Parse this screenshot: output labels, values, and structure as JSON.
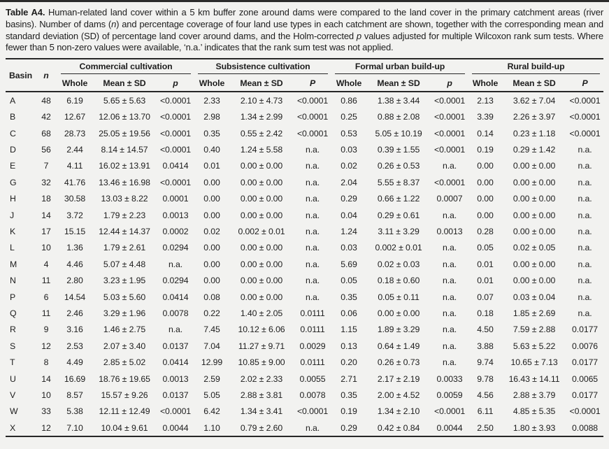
{
  "caption": {
    "label": "Table A4.",
    "part1": " Human-related land cover within a 5 km buffer zone around dams were compared to the land cover in the primary catchment areas (river basins). Number of dams (",
    "n_italic": "n",
    "part2": ") and percentage coverage of four land use types in each catchment are shown, together with the corresponding mean and standard deviation (SD) of percentage land cover around dams, and the Holm-corrected ",
    "p_italic": "p",
    "part3": " values adjusted for multiple Wilcoxon rank sum tests. Where fewer than 5 non-zero values were available, ‘n.a.’ indicates that the rank sum test was not applied."
  },
  "table": {
    "basin_label": "Basin",
    "n_label": "n",
    "subheaders": {
      "whole": "Whole",
      "mean_sd": "Mean ± SD"
    },
    "groups": [
      {
        "label": "Commercial cultivation",
        "p_label": "p"
      },
      {
        "label": "Subsistence cultivation",
        "p_label": "P"
      },
      {
        "label": "Formal urban build-up",
        "p_label": "p"
      },
      {
        "label": "Rural build-up",
        "p_label": "P"
      }
    ],
    "rows": [
      {
        "basin": "A",
        "n": "48",
        "cells": [
          "6.19",
          "5.65 ± 5.63",
          "<0.0001",
          "2.33",
          "2.10 ± 4.73",
          "<0.0001",
          "0.86",
          "1.38 ± 3.44",
          "<0.0001",
          "2.13",
          "3.62 ± 7.04",
          "<0.0001"
        ]
      },
      {
        "basin": "B",
        "n": "42",
        "cells": [
          "12.67",
          "12.06 ± 13.70",
          "<0.0001",
          "2.98",
          "1.34 ± 2.99",
          "<0.0001",
          "0.25",
          "0.88 ± 2.08",
          "<0.0001",
          "3.39",
          "2.26 ± 3.97",
          "<0.0001"
        ]
      },
      {
        "basin": "C",
        "n": "68",
        "cells": [
          "28.73",
          "25.05 ± 19.56",
          "<0.0001",
          "0.35",
          "0.55 ± 2.42",
          "<0.0001",
          "0.53",
          "5.05 ± 10.19",
          "<0.0001",
          "0.14",
          "0.23 ± 1.18",
          "<0.0001"
        ]
      },
      {
        "basin": "D",
        "n": "56",
        "cells": [
          "2.44",
          "8.14 ± 14.57",
          "<0.0001",
          "0.40",
          "1.24 ± 5.58",
          "n.a.",
          "0.03",
          "0.39 ± 1.55",
          "<0.0001",
          "0.19",
          "0.29 ± 1.42",
          "n.a."
        ]
      },
      {
        "basin": "E",
        "n": "7",
        "cells": [
          "4.11",
          "16.02 ± 13.91",
          "0.0414",
          "0.01",
          "0.00 ± 0.00",
          "n.a.",
          "0.02",
          "0.26 ± 0.53",
          "n.a.",
          "0.00",
          "0.00 ± 0.00",
          "n.a."
        ]
      },
      {
        "basin": "G",
        "n": "32",
        "cells": [
          "41.76",
          "13.46 ± 16.98",
          "<0.0001",
          "0.00",
          "0.00 ± 0.00",
          "n.a.",
          "2.04",
          "5.55 ± 8.37",
          "<0.0001",
          "0.00",
          "0.00 ± 0.00",
          "n.a."
        ]
      },
      {
        "basin": "H",
        "n": "18",
        "cells": [
          "30.58",
          "13.03 ± 8.22",
          "0.0001",
          "0.00",
          "0.00 ± 0.00",
          "n.a.",
          "0.29",
          "0.66 ± 1.22",
          "0.0007",
          "0.00",
          "0.00 ± 0.00",
          "n.a."
        ]
      },
      {
        "basin": "J",
        "n": "14",
        "cells": [
          "3.72",
          "1.79 ± 2.23",
          "0.0013",
          "0.00",
          "0.00 ± 0.00",
          "n.a.",
          "0.04",
          "0.29 ± 0.61",
          "n.a.",
          "0.00",
          "0.00 ± 0.00",
          "n.a."
        ]
      },
      {
        "basin": "K",
        "n": "17",
        "cells": [
          "15.15",
          "12.44 ± 14.37",
          "0.0002",
          "0.02",
          "0.002 ± 0.01",
          "n.a.",
          "1.24",
          "3.11 ± 3.29",
          "0.0013",
          "0.28",
          "0.00 ± 0.00",
          "n.a."
        ]
      },
      {
        "basin": "L",
        "n": "10",
        "cells": [
          "1.36",
          "1.79 ± 2.61",
          "0.0294",
          "0.00",
          "0.00 ± 0.00",
          "n.a.",
          "0.03",
          "0.002 ± 0.01",
          "n.a.",
          "0.05",
          "0.02 ± 0.05",
          "n.a."
        ]
      },
      {
        "basin": "M",
        "n": "4",
        "cells": [
          "4.46",
          "5.07 ± 4.48",
          "n.a.",
          "0.00",
          "0.00 ± 0.00",
          "n.a.",
          "5.69",
          "0.02 ± 0.03",
          "n.a.",
          "0.01",
          "0.00 ± 0.00",
          "n.a."
        ]
      },
      {
        "basin": "N",
        "n": "11",
        "cells": [
          "2.80",
          "3.23 ± 1.95",
          "0.0294",
          "0.00",
          "0.00 ± 0.00",
          "n.a.",
          "0.05",
          "0.18 ± 0.60",
          "n.a.",
          "0.01",
          "0.00 ± 0.00",
          "n.a."
        ]
      },
      {
        "basin": "P",
        "n": "6",
        "cells": [
          "14.54",
          "5.03 ± 5.60",
          "0.0414",
          "0.08",
          "0.00 ± 0.00",
          "n.a.",
          "0.35",
          "0.05 ± 0.11",
          "n.a.",
          "0.07",
          "0.03 ± 0.04",
          "n.a."
        ]
      },
      {
        "basin": "Q",
        "n": "11",
        "cells": [
          "2.46",
          "3.29 ± 1.96",
          "0.0078",
          "0.22",
          "1.40 ± 2.05",
          "0.0111",
          "0.06",
          "0.00 ± 0.00",
          "n.a.",
          "0.18",
          "1.85 ± 2.69",
          "n.a."
        ]
      },
      {
        "basin": "R",
        "n": "9",
        "cells": [
          "3.16",
          "1.46 ± 2.75",
          "n.a.",
          "7.45",
          "10.12 ± 6.06",
          "0.0111",
          "1.15",
          "1.89 ± 3.29",
          "n.a.",
          "4.50",
          "7.59 ± 2.88",
          "0.0177"
        ]
      },
      {
        "basin": "S",
        "n": "12",
        "cells": [
          "2.53",
          "2.07 ± 3.40",
          "0.0137",
          "7.04",
          "11.27 ± 9.71",
          "0.0029",
          "0.13",
          "0.64 ± 1.49",
          "n.a.",
          "3.88",
          "5.63 ± 5.22",
          "0.0076"
        ]
      },
      {
        "basin": "T",
        "n": "8",
        "cells": [
          "4.49",
          "2.85 ± 5.02",
          "0.0414",
          "12.99",
          "10.85 ± 9.00",
          "0.0111",
          "0.20",
          "0.26 ± 0.73",
          "n.a.",
          "9.74",
          "10.65 ± 7.13",
          "0.0177"
        ]
      },
      {
        "basin": "U",
        "n": "14",
        "cells": [
          "16.69",
          "18.76 ± 19.65",
          "0.0013",
          "2.59",
          "2.02 ± 2.33",
          "0.0055",
          "2.71",
          "2.17 ± 2.19",
          "0.0033",
          "9.78",
          "16.43 ± 14.11",
          "0.0065"
        ]
      },
      {
        "basin": "V",
        "n": "10",
        "cells": [
          "8.57",
          "15.57 ± 9.26",
          "0.0137",
          "5.05",
          "2.88 ± 3.81",
          "0.0078",
          "0.35",
          "2.00 ± 4.52",
          "0.0059",
          "4.56",
          "2.88 ± 3.79",
          "0.0177"
        ]
      },
      {
        "basin": "W",
        "n": "33",
        "cells": [
          "5.38",
          "12.11 ± 12.49",
          "<0.0001",
          "6.42",
          "1.34 ± 3.41",
          "<0.0001",
          "0.19",
          "1.34 ± 2.10",
          "<0.0001",
          "6.11",
          "4.85 ± 5.35",
          "<0.0001"
        ]
      },
      {
        "basin": "X",
        "n": "12",
        "cells": [
          "7.10",
          "10.04 ± 9.61",
          "0.0044",
          "1.10",
          "0.79 ± 2.60",
          "n.a.",
          "0.29",
          "0.42 ± 0.84",
          "0.0044",
          "2.50",
          "1.80 ± 3.93",
          "0.0088"
        ]
      }
    ]
  }
}
